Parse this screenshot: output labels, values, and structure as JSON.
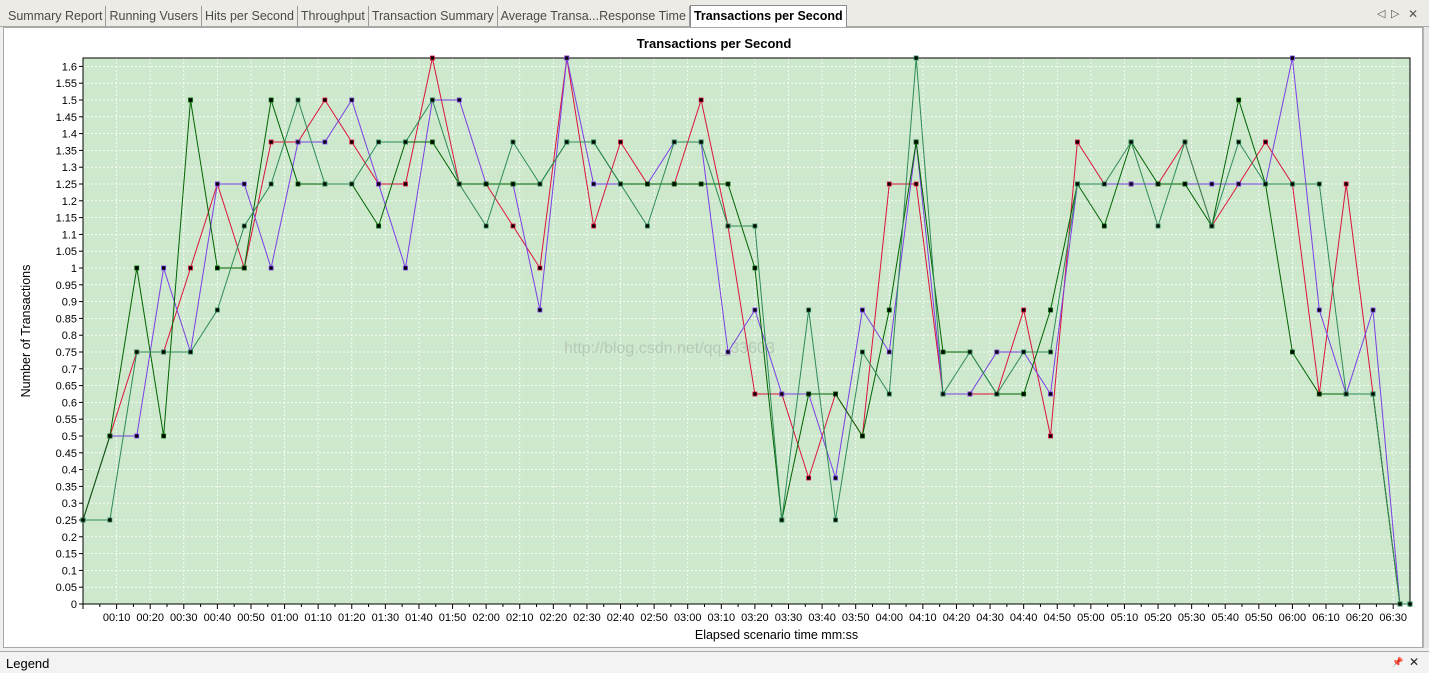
{
  "tabs": [
    {
      "label": "Summary Report",
      "active": false
    },
    {
      "label": "Running Vusers",
      "active": false
    },
    {
      "label": "Hits per Second",
      "active": false
    },
    {
      "label": "Throughput",
      "active": false
    },
    {
      "label": "Transaction Summary",
      "active": false
    },
    {
      "label": "Average Transa...Response Time",
      "active": false
    },
    {
      "label": "Transactions per Second",
      "active": true
    }
  ],
  "tab_controls": {
    "prev": "◁",
    "next": "▷",
    "close": "✕"
  },
  "legend": {
    "label": "Legend",
    "pin": "📌",
    "close": "✕"
  },
  "colors": {
    "plot_bg": "#cde8cd",
    "grid": "#ffffff",
    "frame": "#000000"
  },
  "chart_data": {
    "type": "line",
    "title": "Transactions per Second",
    "xlabel": "Elapsed scenario time mm:ss",
    "ylabel": "Number of Transactions",
    "x_unit": "seconds",
    "xlim": [
      0,
      395
    ],
    "ylim": [
      0,
      1.625
    ],
    "y_ticks": [
      0,
      0.05,
      0.1,
      0.15,
      0.2,
      0.25,
      0.3,
      0.35,
      0.4,
      0.45,
      0.5,
      0.55,
      0.6,
      0.65,
      0.7,
      0.75,
      0.8,
      0.85,
      0.9,
      0.95,
      1,
      1.05,
      1.1,
      1.15,
      1.2,
      1.25,
      1.3,
      1.35,
      1.4,
      1.45,
      1.5,
      1.55,
      1.6
    ],
    "x_tick_labels": [
      "00:10",
      "00:20",
      "00:30",
      "00:40",
      "00:50",
      "01:00",
      "01:10",
      "01:20",
      "01:30",
      "01:40",
      "01:50",
      "02:00",
      "02:10",
      "02:20",
      "02:30",
      "02:40",
      "02:50",
      "03:00",
      "03:10",
      "03:20",
      "03:30",
      "03:40",
      "03:50",
      "04:00",
      "04:10",
      "04:20",
      "04:30",
      "04:40",
      "04:50",
      "05:00",
      "05:10",
      "05:20",
      "05:30",
      "05:40",
      "05:50",
      "06:00",
      "06:10",
      "06:20",
      "06:30"
    ],
    "x_tick_values": [
      10,
      20,
      30,
      40,
      50,
      60,
      70,
      80,
      90,
      100,
      110,
      120,
      130,
      140,
      150,
      160,
      170,
      180,
      190,
      200,
      210,
      220,
      230,
      240,
      250,
      260,
      270,
      280,
      290,
      300,
      310,
      320,
      330,
      340,
      350,
      360,
      370,
      380,
      390
    ],
    "watermark": "http://blog.csdn.net/qq_33603",
    "x": [
      0,
      8,
      16,
      24,
      32,
      40,
      48,
      56,
      64,
      72,
      80,
      88,
      96,
      104,
      112,
      120,
      128,
      136,
      144,
      152,
      160,
      168,
      176,
      184,
      192,
      200,
      208,
      216,
      224,
      232,
      240,
      248,
      256,
      264,
      272,
      280,
      288,
      296,
      304,
      312,
      320,
      328,
      336,
      344,
      352,
      360,
      368,
      376,
      384,
      392,
      395
    ],
    "series": [
      {
        "color": "#dc143c",
        "values": [
          0.25,
          0.5,
          0.75,
          0.75,
          1,
          1.25,
          1,
          1.375,
          1.375,
          1.5,
          1.375,
          1.25,
          1.25,
          1.625,
          1.25,
          1.25,
          1.125,
          1,
          1.625,
          1.125,
          1.375,
          1.25,
          1.25,
          1.5,
          1.125,
          0.625,
          0.625,
          0.375,
          0.625,
          0.5,
          1.25,
          1.25,
          0.625,
          0.625,
          0.625,
          0.875,
          0.5,
          1.375,
          1.25,
          1.25,
          1.25,
          1.375,
          1.125,
          1.25,
          1.375,
          1.25,
          0.625,
          1.25,
          0.625,
          0,
          0
        ]
      },
      {
        "color": "#7b3fe4",
        "values": [
          0.25,
          0.5,
          0.5,
          1,
          0.75,
          1.25,
          1.25,
          1,
          1.375,
          1.375,
          1.5,
          1.25,
          1,
          1.5,
          1.5,
          1.25,
          1.25,
          0.875,
          1.625,
          1.25,
          1.25,
          1.25,
          1.375,
          1.375,
          0.75,
          0.875,
          0.625,
          0.625,
          0.375,
          0.875,
          0.75,
          1.375,
          0.625,
          0.625,
          0.75,
          0.75,
          0.625,
          1.25,
          1.25,
          1.25,
          1.25,
          1.25,
          1.25,
          1.25,
          1.25,
          1.625,
          0.875,
          0.625,
          0.875,
          0,
          0
        ]
      },
      {
        "color": "#006400",
        "values": [
          0.25,
          0.5,
          1,
          0.5,
          1.5,
          1,
          1,
          1.5,
          1.25,
          1.25,
          1.25,
          1.125,
          1.375,
          1.375,
          1.25,
          1.25,
          1.25,
          1.25,
          1.375,
          1.375,
          1.25,
          1.25,
          1.25,
          1.25,
          1.25,
          1,
          0.25,
          0.625,
          0.625,
          0.5,
          0.875,
          1.375,
          0.75,
          0.75,
          0.625,
          0.625,
          0.875,
          1.25,
          1.125,
          1.375,
          1.25,
          1.25,
          1.125,
          1.5,
          1.25,
          0.75,
          0.625,
          0.625,
          0.625,
          0,
          0
        ]
      },
      {
        "color": "#2e8b57",
        "values": [
          0.25,
          0.25,
          0.75,
          0.75,
          0.75,
          0.875,
          1.125,
          1.25,
          1.5,
          1.25,
          1.25,
          1.375,
          1.375,
          1.5,
          1.25,
          1.125,
          1.375,
          1.25,
          1.375,
          1.375,
          1.25,
          1.125,
          1.375,
          1.375,
          1.125,
          1.125,
          0.25,
          0.875,
          0.25,
          0.75,
          0.625,
          1.625,
          0.625,
          0.75,
          0.625,
          0.75,
          0.75,
          1.25,
          1.25,
          1.375,
          1.125,
          1.375,
          1.125,
          1.375,
          1.25,
          1.25,
          1.25,
          0.625,
          0.625,
          0,
          0
        ]
      }
    ]
  }
}
